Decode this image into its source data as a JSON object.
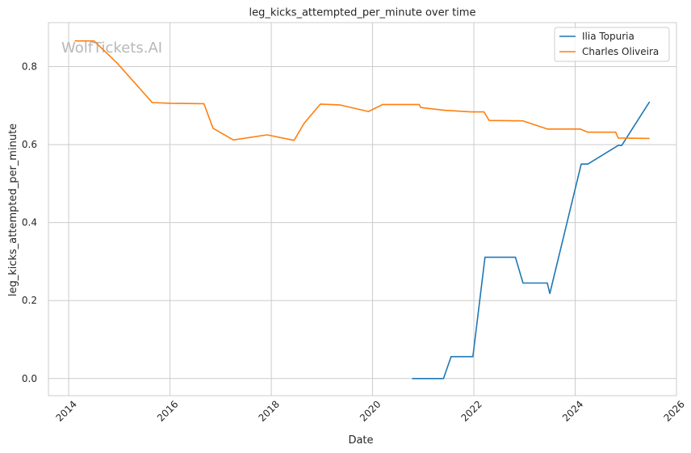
{
  "chart_data": {
    "type": "line",
    "title": "leg_kicks_attempted_per_minute over time",
    "xlabel": "Date",
    "ylabel": "leg_kicks_attempted_per_minute",
    "watermark": "WolfTickets.AI",
    "xlim": [
      2013.6,
      2026.0
    ],
    "ylim": [
      -0.044,
      0.913
    ],
    "x_ticks": [
      2014,
      2016,
      2018,
      2020,
      2022,
      2024,
      2026
    ],
    "x_tick_labels": [
      "2014",
      "2016",
      "2018",
      "2020",
      "2022",
      "2024",
      "2026"
    ],
    "y_ticks": [
      0.0,
      0.2,
      0.4,
      0.6,
      0.8
    ],
    "y_tick_labels": [
      "0.0",
      "0.2",
      "0.4",
      "0.6",
      "0.8"
    ],
    "grid": true,
    "legend_position": "top-right",
    "series": [
      {
        "name": "Ilia Topuria",
        "color": "#1f77b4",
        "x": [
          2020.78,
          2020.95,
          2021.4,
          2021.55,
          2021.98,
          2022.22,
          2022.82,
          2022.97,
          2023.45,
          2023.5,
          2024.12,
          2024.25,
          2024.85,
          2024.92,
          2025.47
        ],
        "y": [
          0.0,
          0.0,
          0.0,
          0.056,
          0.056,
          0.311,
          0.311,
          0.245,
          0.245,
          0.218,
          0.55,
          0.55,
          0.598,
          0.598,
          0.71
        ]
      },
      {
        "name": "Charles Oliveira",
        "color": "#ff7f0e",
        "x": [
          2014.12,
          2014.5,
          2014.95,
          2015.65,
          2016.02,
          2016.67,
          2016.85,
          2017.25,
          2017.92,
          2018.45,
          2018.65,
          2018.97,
          2019.35,
          2019.92,
          2020.2,
          2020.92,
          2020.95,
          2021.42,
          2021.95,
          2022.2,
          2022.3,
          2022.97,
          2023.45,
          2024.1,
          2024.25,
          2024.8,
          2024.85,
          2025.47
        ],
        "y": [
          0.866,
          0.866,
          0.81,
          0.708,
          0.706,
          0.705,
          0.642,
          0.612,
          0.625,
          0.611,
          0.655,
          0.704,
          0.702,
          0.685,
          0.703,
          0.703,
          0.695,
          0.688,
          0.684,
          0.684,
          0.662,
          0.661,
          0.64,
          0.64,
          0.632,
          0.632,
          0.617,
          0.616
        ]
      }
    ]
  }
}
